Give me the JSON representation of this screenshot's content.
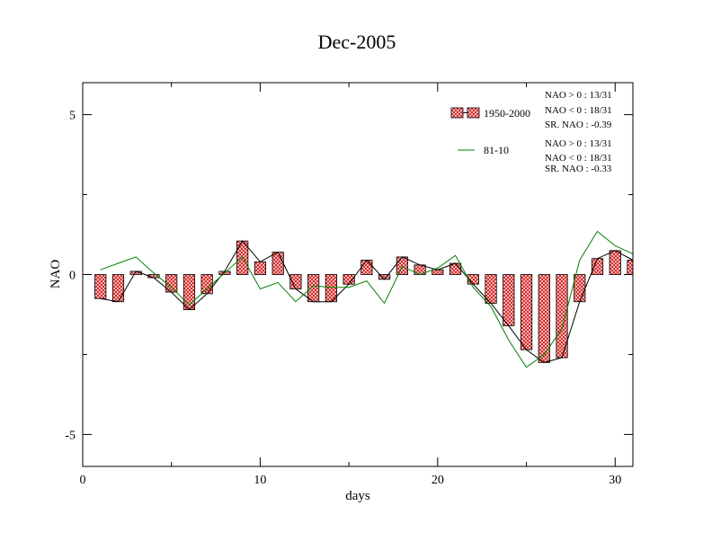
{
  "chart_data": {
    "type": "bar",
    "title": "Dec-2005",
    "xlabel": "days",
    "ylabel": "NAO",
    "xlim": [
      0,
      31
    ],
    "ylim": [
      -6,
      6
    ],
    "xticks": [
      0,
      10,
      20,
      30
    ],
    "yticks": [
      -5,
      0,
      5
    ],
    "grid": false,
    "legend_position": "top-right",
    "x": [
      1,
      2,
      3,
      4,
      5,
      6,
      7,
      8,
      9,
      10,
      11,
      12,
      13,
      14,
      15,
      16,
      17,
      18,
      19,
      20,
      21,
      22,
      23,
      24,
      25,
      26,
      27,
      28,
      29,
      30,
      31
    ],
    "series": [
      {
        "name": "1950-2000",
        "render": "bar+line",
        "color": "#e06060",
        "values": [
          -0.75,
          -0.85,
          0.1,
          -0.1,
          -0.55,
          -1.1,
          -0.6,
          0.1,
          1.05,
          0.4,
          0.7,
          -0.45,
          -0.85,
          -0.85,
          -0.3,
          0.45,
          -0.15,
          0.55,
          0.3,
          0.15,
          0.35,
          -0.3,
          -0.9,
          -1.6,
          -2.35,
          -2.75,
          -2.6,
          -0.85,
          0.5,
          0.75,
          0.45
        ],
        "stats": [
          "NAO > 0 : 13/31",
          "NAO < 0 : 18/31",
          "SR. NAO : -0.39"
        ]
      },
      {
        "name": "81-10",
        "render": "line",
        "color": "#008000",
        "values": [
          0.15,
          0.35,
          0.55,
          0.05,
          -0.4,
          -0.95,
          -0.45,
          0.05,
          0.55,
          -0.45,
          -0.25,
          -0.85,
          -0.35,
          -0.4,
          -0.4,
          -0.2,
          -0.9,
          0.25,
          0.0,
          0.2,
          0.6,
          -0.4,
          -1.0,
          -2.05,
          -2.9,
          -2.5,
          -1.7,
          0.45,
          1.35,
          0.9,
          0.65
        ],
        "stats": [
          "NAO > 0 : 13/31",
          "NAO < 0 : 18/31",
          "SR. NAO : -0.33"
        ]
      }
    ]
  }
}
